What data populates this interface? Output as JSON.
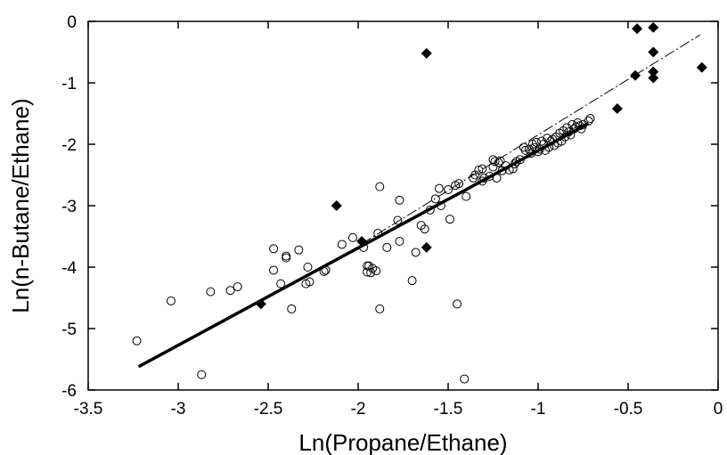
{
  "chart_data": {
    "type": "scatter",
    "title": "",
    "xlabel": "Ln(Propane/Ethane)",
    "ylabel": "Ln(n-Butane/Ethane)",
    "xlim": [
      -3.5,
      0
    ],
    "ylim": [
      -6,
      0
    ],
    "x_ticks": [
      -3.5,
      -3,
      -2.5,
      -2,
      -1.5,
      -1,
      -0.5,
      0
    ],
    "x_tick_labels": [
      "-3.5",
      "-3",
      "-2.5",
      "-2",
      "-1.5",
      "-1",
      "-0.5",
      "0"
    ],
    "y_ticks": [
      0,
      -1,
      -2,
      -3,
      -4,
      -5,
      -6
    ],
    "y_tick_labels": [
      "0",
      "-1",
      "-2",
      "-3",
      "-4",
      "-5",
      "-6"
    ],
    "grid": false,
    "legend": "none",
    "series": [
      {
        "marker": "open-circle",
        "color": "#000000",
        "points": [
          [
            -3.23,
            -5.2
          ],
          [
            -3.04,
            -4.55
          ],
          [
            -2.87,
            -5.75
          ],
          [
            -2.82,
            -4.4
          ],
          [
            -2.71,
            -4.38
          ],
          [
            -2.67,
            -4.32
          ],
          [
            -2.47,
            -3.7
          ],
          [
            -2.47,
            -4.05
          ],
          [
            -2.43,
            -4.27
          ],
          [
            -2.4,
            -3.82
          ],
          [
            -2.4,
            -3.85
          ],
          [
            -2.37,
            -4.68
          ],
          [
            -2.33,
            -3.72
          ],
          [
            -2.29,
            -4.27
          ],
          [
            -2.28,
            -4.0
          ],
          [
            -2.27,
            -4.24
          ],
          [
            -2.19,
            -4.07
          ],
          [
            -2.18,
            -4.05
          ],
          [
            -2.09,
            -3.63
          ],
          [
            -2.03,
            -3.52
          ],
          [
            -1.97,
            -3.68
          ],
          [
            -1.95,
            -3.98
          ],
          [
            -1.95,
            -4.08
          ],
          [
            -1.94,
            -3.98
          ],
          [
            -1.92,
            -4.02
          ],
          [
            -1.93,
            -4.09
          ],
          [
            -1.9,
            -4.06
          ],
          [
            -1.89,
            -3.45
          ],
          [
            -1.88,
            -4.68
          ],
          [
            -1.88,
            -2.69
          ],
          [
            -1.84,
            -3.68
          ],
          [
            -1.78,
            -3.24
          ],
          [
            -1.77,
            -2.91
          ],
          [
            -1.77,
            -3.58
          ],
          [
            -1.7,
            -4.22
          ],
          [
            -1.68,
            -3.76
          ],
          [
            -1.65,
            -3.32
          ],
          [
            -1.63,
            -3.38
          ],
          [
            -1.6,
            -3.07
          ],
          [
            -1.57,
            -2.89
          ],
          [
            -1.55,
            -2.72
          ],
          [
            -1.54,
            -3.0
          ],
          [
            -1.5,
            -2.74
          ],
          [
            -1.49,
            -3.22
          ],
          [
            -1.46,
            -2.67
          ],
          [
            -1.45,
            -4.6
          ],
          [
            -1.44,
            -2.64
          ],
          [
            -1.41,
            -5.82
          ],
          [
            -1.4,
            -2.85
          ],
          [
            -1.36,
            -2.55
          ],
          [
            -1.35,
            -2.5
          ],
          [
            -1.33,
            -2.42
          ],
          [
            -1.31,
            -2.6
          ],
          [
            -1.31,
            -2.4
          ],
          [
            -1.3,
            -2.55
          ],
          [
            -1.27,
            -2.52
          ],
          [
            -1.25,
            -2.25
          ],
          [
            -1.25,
            -2.37
          ],
          [
            -1.24,
            -2.28
          ],
          [
            -1.23,
            -2.55
          ],
          [
            -1.22,
            -2.3
          ],
          [
            -1.21,
            -2.27
          ],
          [
            -1.2,
            -2.43
          ],
          [
            -1.18,
            -2.35
          ],
          [
            -1.16,
            -2.42
          ],
          [
            -1.14,
            -2.4
          ],
          [
            -1.13,
            -2.32
          ],
          [
            -1.12,
            -2.28
          ],
          [
            -1.1,
            -2.25
          ],
          [
            -1.08,
            -2.05
          ],
          [
            -1.07,
            -2.1
          ],
          [
            -1.05,
            -2.08
          ],
          [
            -1.04,
            -2.15
          ],
          [
            -1.03,
            -2.0
          ],
          [
            -1.02,
            -2.05
          ],
          [
            -1.01,
            -1.97
          ],
          [
            -1.0,
            -2.12
          ],
          [
            -0.99,
            -2.08
          ],
          [
            -0.98,
            -1.95
          ],
          [
            -0.97,
            -2.0
          ],
          [
            -0.96,
            -2.1
          ],
          [
            -0.95,
            -1.9
          ],
          [
            -0.94,
            -2.05
          ],
          [
            -0.93,
            -1.95
          ],
          [
            -0.92,
            -1.92
          ],
          [
            -0.91,
            -2.02
          ],
          [
            -0.9,
            -1.88
          ],
          [
            -0.89,
            -1.98
          ],
          [
            -0.88,
            -1.82
          ],
          [
            -0.87,
            -1.95
          ],
          [
            -0.86,
            -1.78
          ],
          [
            -0.85,
            -1.88
          ],
          [
            -0.84,
            -1.73
          ],
          [
            -0.83,
            -1.8
          ],
          [
            -0.82,
            -1.85
          ],
          [
            -0.81,
            -1.68
          ],
          [
            -0.8,
            -1.75
          ],
          [
            -0.79,
            -1.72
          ],
          [
            -0.78,
            -1.65
          ],
          [
            -0.77,
            -1.7
          ],
          [
            -0.76,
            -1.75
          ],
          [
            -0.75,
            -1.68
          ],
          [
            -0.72,
            -1.62
          ],
          [
            -0.71,
            -1.58
          ]
        ]
      },
      {
        "marker": "filled-diamond",
        "color": "#000000",
        "points": [
          [
            -2.54,
            -4.6
          ],
          [
            -2.12,
            -3.0
          ],
          [
            -1.98,
            -3.58
          ],
          [
            -1.62,
            -0.52
          ],
          [
            -1.62,
            -3.68
          ],
          [
            -0.56,
            -1.42
          ],
          [
            -0.46,
            -0.88
          ],
          [
            -0.45,
            -0.12
          ],
          [
            -0.36,
            -0.1
          ],
          [
            -0.36,
            -0.5
          ],
          [
            -0.36,
            -0.82
          ],
          [
            -0.36,
            -0.92
          ],
          [
            -0.09,
            -0.75
          ]
        ]
      }
    ],
    "lines": [
      {
        "style": "solid-bold",
        "color": "#000000",
        "x": [
          -3.22,
          -0.72
        ],
        "y": [
          -5.62,
          -1.66
        ]
      },
      {
        "style": "dash-dot",
        "color": "#000000",
        "x": [
          -1.98,
          -0.1
        ],
        "y": [
          -3.62,
          -0.22
        ]
      }
    ]
  }
}
